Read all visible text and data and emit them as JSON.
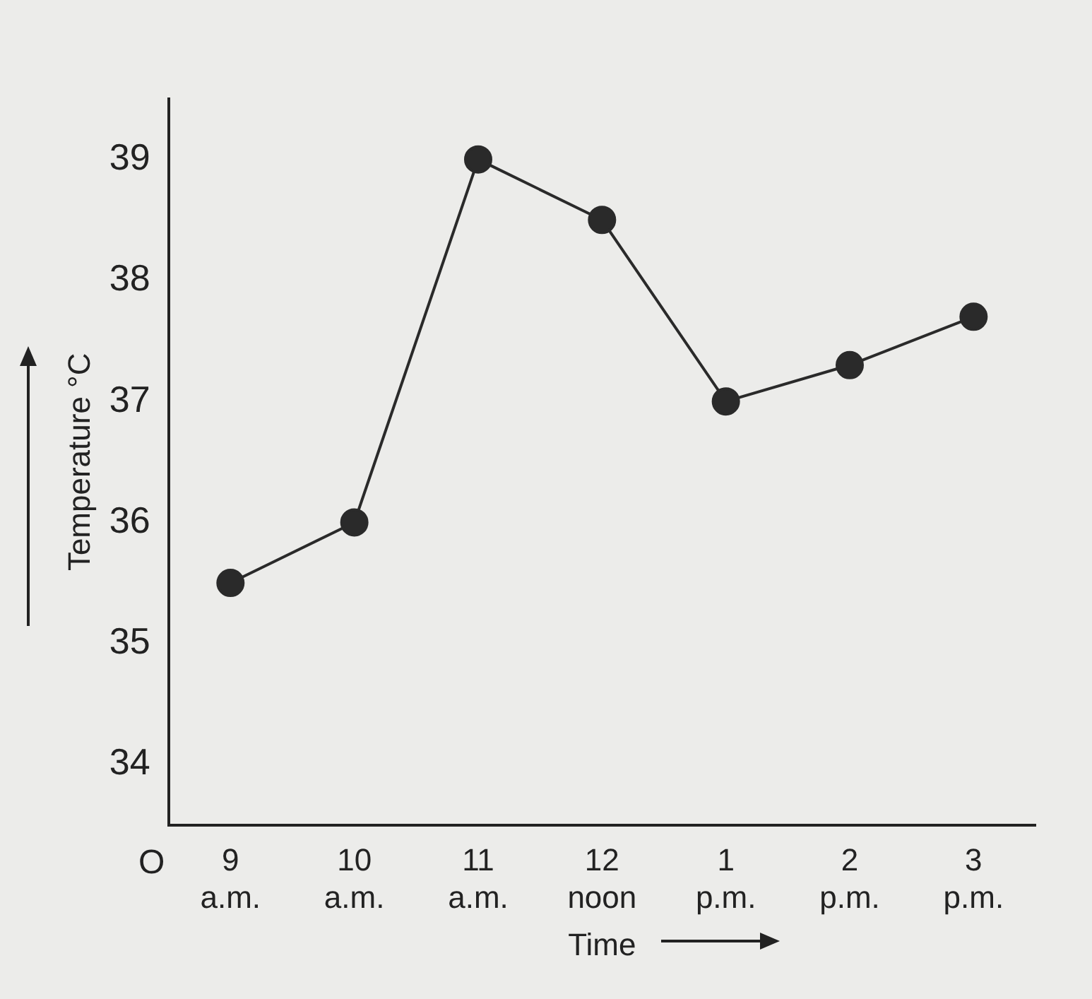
{
  "chart_data": {
    "type": "line",
    "xlabel": "Time",
    "ylabel": "Temperature °C",
    "categories": [
      "9 a.m.",
      "10 a.m.",
      "11 a.m.",
      "12 noon",
      "1 p.m.",
      "2 p.m.",
      "3 p.m."
    ],
    "series": [
      {
        "color": "#2a2a2a",
        "values": [
          35.5,
          36,
          39,
          38.5,
          37,
          37.3,
          37.7
        ]
      }
    ],
    "ylim": [
      33.5,
      39.5
    ],
    "yticks": [
      34,
      35,
      36,
      37,
      38,
      39
    ],
    "grid": false,
    "legend": false,
    "marker": "circle",
    "line_style": "solid",
    "annotations": [
      "O"
    ]
  }
}
